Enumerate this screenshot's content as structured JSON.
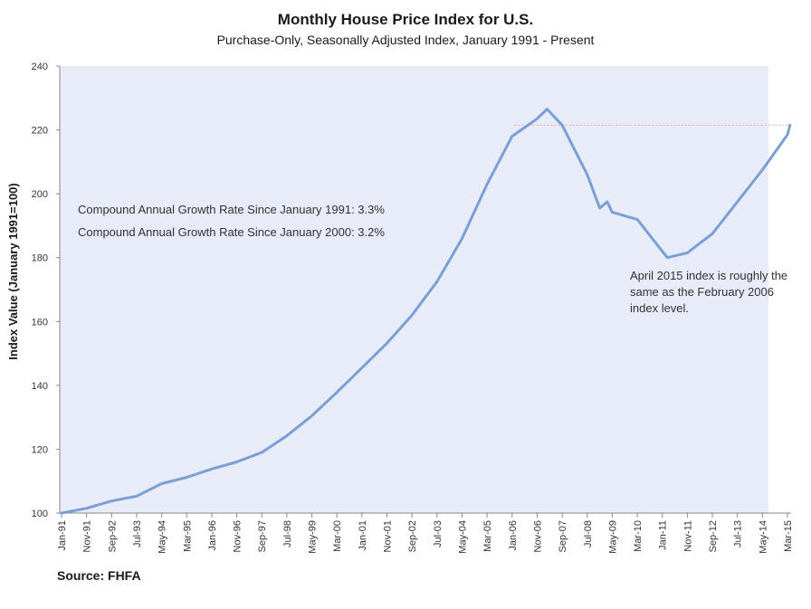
{
  "chart_data": {
    "type": "line",
    "title": "Monthly House Price Index for U.S.",
    "subtitle": "Purchase-Only, Seasonally Adjusted Index, January 1991 - Present",
    "xlabel": "",
    "ylabel": "Index Value (January 1991=100)",
    "ylim": [
      100,
      240
    ],
    "yticks": [
      100,
      120,
      140,
      160,
      180,
      200,
      220,
      240
    ],
    "xticks": [
      "Jan-91",
      "Nov-91",
      "Sep-92",
      "Jul-93",
      "May-94",
      "Mar-95",
      "Jan-96",
      "Nov-96",
      "Sep-97",
      "Jul-98",
      "May-99",
      "Mar-00",
      "Jan-01",
      "Nov-01",
      "Sep-02",
      "Jul-03",
      "May-04",
      "Mar-05",
      "Jan-06",
      "Nov-06",
      "Sep-07",
      "Jul-08",
      "May-09",
      "Mar-10",
      "Jan-11",
      "Nov-11",
      "Sep-12",
      "Jul-13",
      "May-14",
      "Mar-15"
    ],
    "series": [
      {
        "name": "Monthly House Price Index for U.S.",
        "color": "#7a9fd4",
        "points": [
          [
            "Jan-91",
            100.0
          ],
          [
            "Nov-91",
            101.5
          ],
          [
            "Sep-92",
            103.8
          ],
          [
            "Jul-93",
            105.3
          ],
          [
            "May-94",
            109.2
          ],
          [
            "Mar-95",
            111.2
          ],
          [
            "Jan-96",
            113.8
          ],
          [
            "Nov-96",
            116.0
          ],
          [
            "Sep-97",
            119.0
          ],
          [
            "Jul-98",
            124.2
          ],
          [
            "May-99",
            130.5
          ],
          [
            "Mar-00",
            137.8
          ],
          [
            "Jan-01",
            145.5
          ],
          [
            "Nov-01",
            153.2
          ],
          [
            "Sep-02",
            162.0
          ],
          [
            "Jul-03",
            172.5
          ],
          [
            "May-04",
            186.0
          ],
          [
            "Mar-05",
            203.0
          ],
          [
            "Jan-06",
            218.0
          ],
          [
            "Nov-06",
            223.5
          ],
          [
            "Mar-07",
            226.5
          ],
          [
            "Sep-07",
            221.5
          ],
          [
            "Jul-08",
            206.0
          ],
          [
            "Dec-08",
            195.5
          ],
          [
            "Mar-09",
            197.5
          ],
          [
            "May-09",
            194.2
          ],
          [
            "Mar-10",
            192.0
          ],
          [
            "Jan-11",
            182.0
          ],
          [
            "Mar-11",
            180.0
          ],
          [
            "Nov-11",
            181.5
          ],
          [
            "Sep-12",
            187.5
          ],
          [
            "Jul-13",
            197.5
          ],
          [
            "May-14",
            207.5
          ],
          [
            "Mar-15",
            218.5
          ],
          [
            "Apr-15",
            221.5
          ]
        ]
      }
    ],
    "reference_line": {
      "value": 221.5,
      "from": "Feb-06",
      "to": "Apr-15",
      "color": "#e7a0a0"
    },
    "annotations": [
      "Compound Annual Growth Rate Since January 1991:  3.3%",
      "Compound Annual Growth Rate Since January 2000:  3.2%",
      "April 2015 index is roughly the same as the February 2006 index level."
    ],
    "source": "Source: FHFA",
    "plot_background": "#e8ebf8",
    "grid": false
  }
}
